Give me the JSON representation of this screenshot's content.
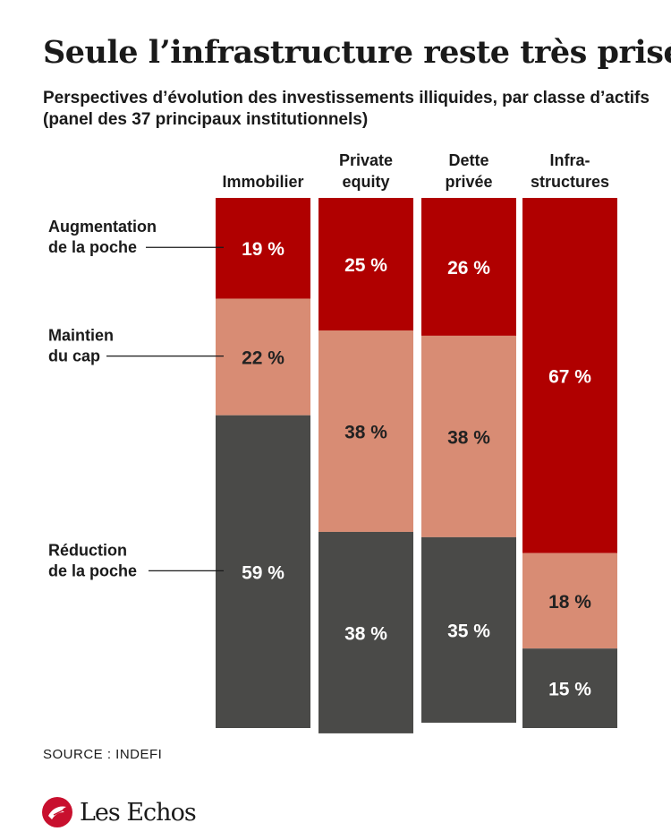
{
  "title": "Seule l’infrastructure reste très prisée",
  "subtitle": [
    "Perspectives d’évolution des investissements illiquides, par classe d’actifs",
    "(panel des 37 principaux institutionnels)"
  ],
  "source": "SOURCE : INDEFI",
  "brand": "Les Echos",
  "colors": {
    "augmentation": "#b00000",
    "maintien": "#d88c74",
    "reduction": "#4a4a48",
    "label_dark": "#222222",
    "label_light": "#ffffff"
  },
  "chart_data": {
    "type": "bar",
    "stacked": true,
    "orientation": "vertical",
    "categories": [
      [
        "Immobilier"
      ],
      [
        "Private",
        "equity"
      ],
      [
        "Dette",
        "privée"
      ],
      [
        "Infra-",
        "structures"
      ]
    ],
    "series": [
      {
        "name": [
          "Augmentation",
          "de la poche"
        ],
        "values": [
          19,
          25,
          26,
          67
        ],
        "labels": [
          "19 %",
          "25 %",
          "26 %",
          "67 %"
        ]
      },
      {
        "name": [
          "Maintien",
          "du cap"
        ],
        "values": [
          22,
          38,
          38,
          18
        ],
        "labels": [
          "22 %",
          "38 %",
          "38 %",
          "18 %"
        ]
      },
      {
        "name": [
          "Réduction",
          "de la poche"
        ],
        "values": [
          59,
          38,
          35,
          15
        ],
        "labels": [
          "59 %",
          "38 %",
          "35 %",
          "15 %"
        ]
      }
    ],
    "stack_order": "Augmentation on top, Réduction at bottom",
    "legend_placement": "left, annotated with leader lines",
    "ylim": [
      0,
      100
    ],
    "grid": false
  }
}
